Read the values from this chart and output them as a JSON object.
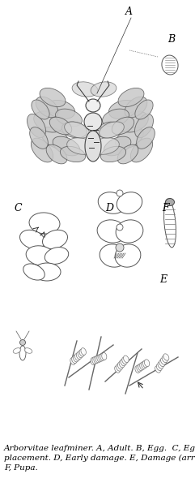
{
  "title": "",
  "caption": "Arborvitae leafminer. A, Adult. B, Egg.  C, Egg\nplacement. D, Early damage. E, Damage (arrow).\nF, Pupa.",
  "caption_fontsize": 7.5,
  "caption_fontfamily": "serif",
  "bg_color": "#ffffff",
  "fig_width": 2.41,
  "fig_height": 6.0,
  "dpi": 100,
  "label_A": "A",
  "label_B": "B",
  "label_C": "C",
  "label_D": "D",
  "label_E": "E",
  "label_F": "F",
  "label_fontsize": 9,
  "label_fontstyle": "italic"
}
